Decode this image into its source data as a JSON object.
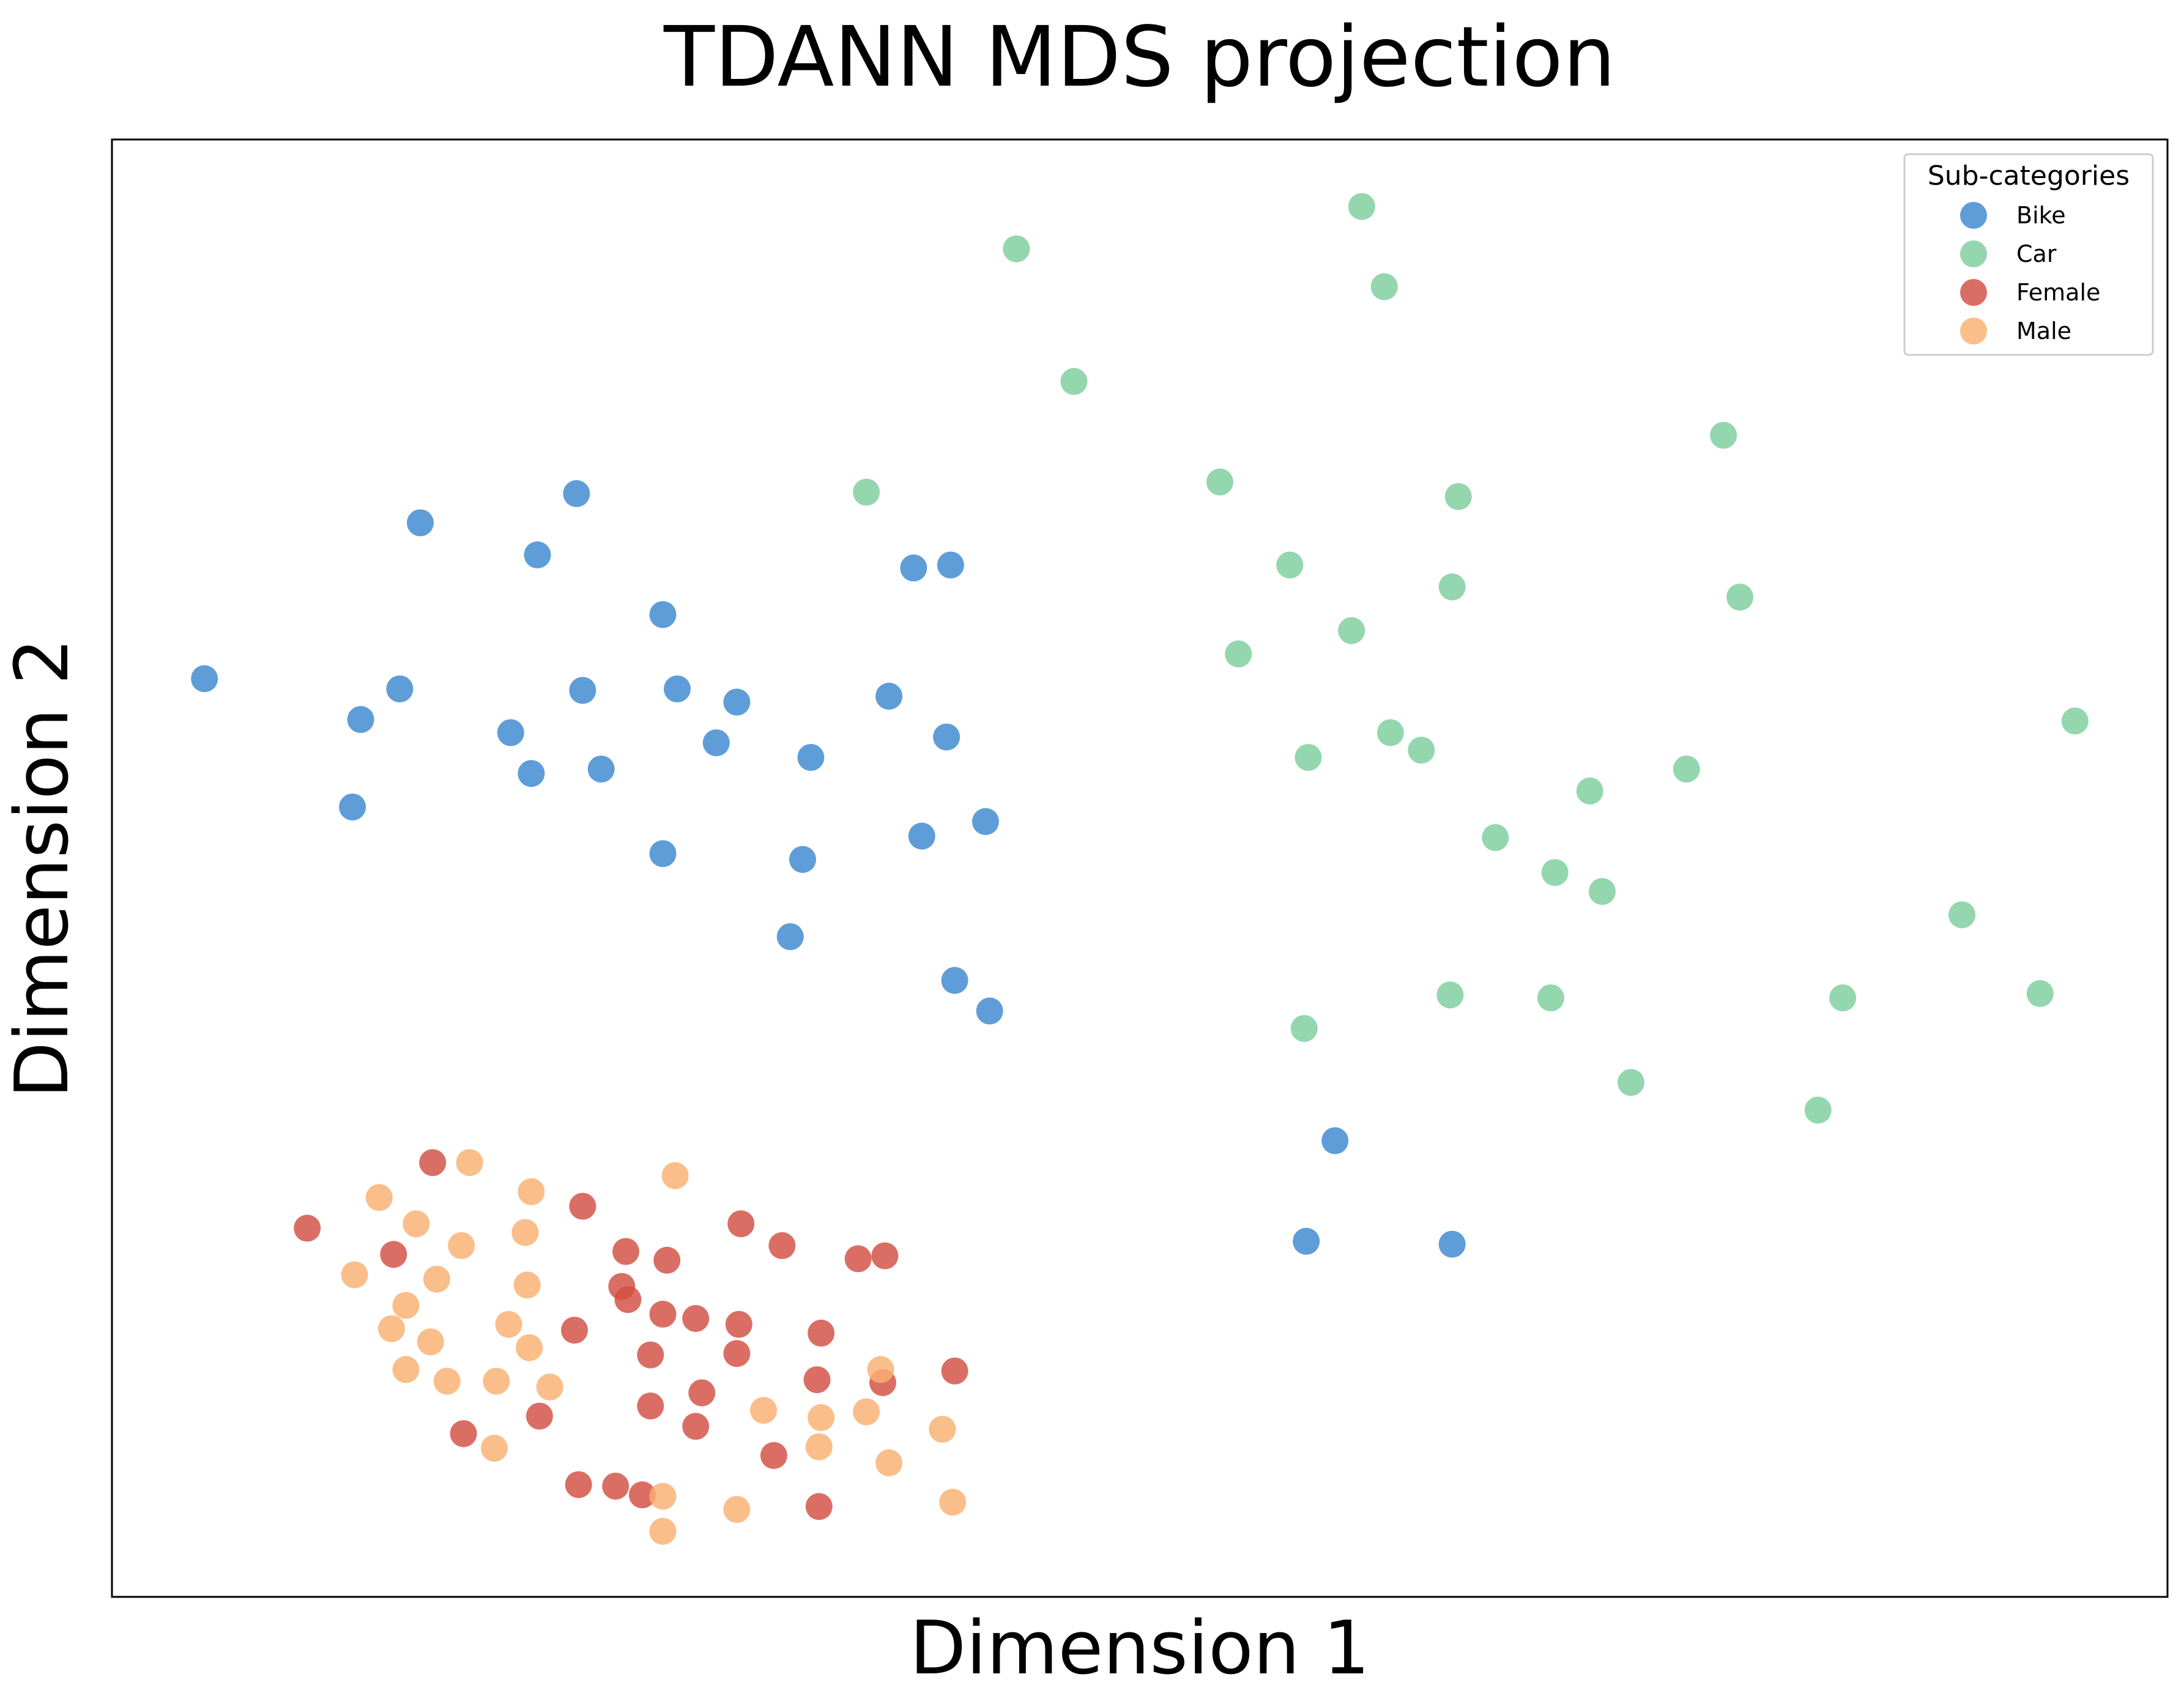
{
  "chart_data": {
    "type": "scatter",
    "title": "TDANN MDS projection",
    "xlabel": "Dimension 1",
    "ylabel": "Dimension 2",
    "xlim": [
      0,
      100
    ],
    "ylim": [
      0,
      100
    ],
    "ticks": "none",
    "grid": false,
    "legend": {
      "title": "Sub-categories",
      "placement": "top-right"
    },
    "series": [
      {
        "name": "Bike",
        "color": "#3a87cf",
        "points": [
          [
            4.5,
            63.0
          ],
          [
            12.1,
            60.2
          ],
          [
            14.0,
            62.3
          ],
          [
            15.0,
            73.7
          ],
          [
            11.7,
            54.2
          ],
          [
            19.4,
            59.3
          ],
          [
            22.6,
            75.7
          ],
          [
            20.7,
            71.5
          ],
          [
            22.9,
            62.2
          ],
          [
            20.4,
            56.5
          ],
          [
            23.8,
            56.8
          ],
          [
            26.8,
            67.4
          ],
          [
            27.5,
            62.3
          ],
          [
            29.4,
            58.6
          ],
          [
            30.4,
            61.4
          ],
          [
            26.8,
            51.0
          ],
          [
            33.6,
            50.6
          ],
          [
            34.0,
            57.6
          ],
          [
            33.0,
            45.3
          ],
          [
            37.8,
            61.8
          ],
          [
            39.0,
            70.6
          ],
          [
            40.8,
            70.8
          ],
          [
            40.6,
            59.0
          ],
          [
            41.0,
            42.3
          ],
          [
            39.4,
            52.2
          ],
          [
            42.5,
            53.2
          ],
          [
            42.7,
            40.2
          ],
          [
            59.5,
            31.3
          ],
          [
            58.1,
            24.4
          ],
          [
            65.2,
            24.2
          ]
        ]
      },
      {
        "name": "Car",
        "color": "#7ccd9c",
        "points": [
          [
            44.0,
            92.5
          ],
          [
            60.8,
            95.4
          ],
          [
            61.9,
            89.9
          ],
          [
            46.8,
            83.4
          ],
          [
            36.7,
            75.8
          ],
          [
            53.9,
            76.5
          ],
          [
            65.5,
            75.5
          ],
          [
            78.4,
            79.7
          ],
          [
            57.3,
            70.8
          ],
          [
            65.2,
            69.3
          ],
          [
            79.2,
            68.6
          ],
          [
            60.3,
            66.3
          ],
          [
            54.8,
            64.7
          ],
          [
            95.5,
            60.1
          ],
          [
            62.2,
            59.3
          ],
          [
            58.2,
            57.6
          ],
          [
            63.7,
            58.1
          ],
          [
            76.6,
            56.8
          ],
          [
            71.9,
            55.3
          ],
          [
            67.3,
            52.1
          ],
          [
            70.2,
            49.7
          ],
          [
            72.5,
            48.4
          ],
          [
            90.0,
            46.8
          ],
          [
            65.1,
            41.3
          ],
          [
            70.0,
            41.1
          ],
          [
            84.2,
            41.1
          ],
          [
            93.8,
            41.4
          ],
          [
            58.0,
            39.0
          ],
          [
            73.9,
            35.3
          ],
          [
            83.0,
            33.4
          ]
        ]
      },
      {
        "name": "Female",
        "color": "#d24e43",
        "points": [
          [
            15.6,
            29.8
          ],
          [
            9.5,
            25.3
          ],
          [
            13.7,
            23.5
          ],
          [
            22.9,
            26.8
          ],
          [
            24.8,
            21.3
          ],
          [
            25.0,
            23.7
          ],
          [
            27.0,
            23.1
          ],
          [
            30.6,
            25.6
          ],
          [
            32.6,
            24.1
          ],
          [
            36.3,
            23.2
          ],
          [
            25.1,
            20.4
          ],
          [
            26.8,
            19.4
          ],
          [
            28.4,
            19.1
          ],
          [
            30.5,
            18.7
          ],
          [
            34.5,
            18.1
          ],
          [
            30.4,
            16.7
          ],
          [
            22.5,
            18.3
          ],
          [
            26.2,
            16.6
          ],
          [
            28.7,
            14.0
          ],
          [
            37.5,
            14.7
          ],
          [
            34.3,
            14.9
          ],
          [
            41.0,
            15.5
          ],
          [
            17.1,
            11.2
          ],
          [
            20.8,
            12.4
          ],
          [
            26.2,
            13.1
          ],
          [
            28.4,
            11.7
          ],
          [
            32.2,
            9.7
          ],
          [
            22.7,
            7.7
          ],
          [
            24.5,
            7.6
          ],
          [
            25.8,
            7.0
          ],
          [
            34.4,
            6.2
          ],
          [
            37.6,
            23.4
          ]
        ]
      },
      {
        "name": "Male",
        "color": "#f9b070",
        "points": [
          [
            17.4,
            29.8
          ],
          [
            13.0,
            27.4
          ],
          [
            14.8,
            25.6
          ],
          [
            17.0,
            24.1
          ],
          [
            20.4,
            27.8
          ],
          [
            20.1,
            25.0
          ],
          [
            27.4,
            28.9
          ],
          [
            11.8,
            22.1
          ],
          [
            15.8,
            21.8
          ],
          [
            14.3,
            20.0
          ],
          [
            20.2,
            21.4
          ],
          [
            13.6,
            18.4
          ],
          [
            15.5,
            17.5
          ],
          [
            20.3,
            17.1
          ],
          [
            14.3,
            15.6
          ],
          [
            16.3,
            14.8
          ],
          [
            18.7,
            14.8
          ],
          [
            21.3,
            14.4
          ],
          [
            19.3,
            18.7
          ],
          [
            18.6,
            10.2
          ],
          [
            31.7,
            12.8
          ],
          [
            34.5,
            12.3
          ],
          [
            36.7,
            12.7
          ],
          [
            40.4,
            11.5
          ],
          [
            34.4,
            10.3
          ],
          [
            37.8,
            9.2
          ],
          [
            26.8,
            6.9
          ],
          [
            30.4,
            6.0
          ],
          [
            40.9,
            6.5
          ],
          [
            26.8,
            4.5
          ],
          [
            37.4,
            15.6
          ]
        ]
      }
    ]
  }
}
